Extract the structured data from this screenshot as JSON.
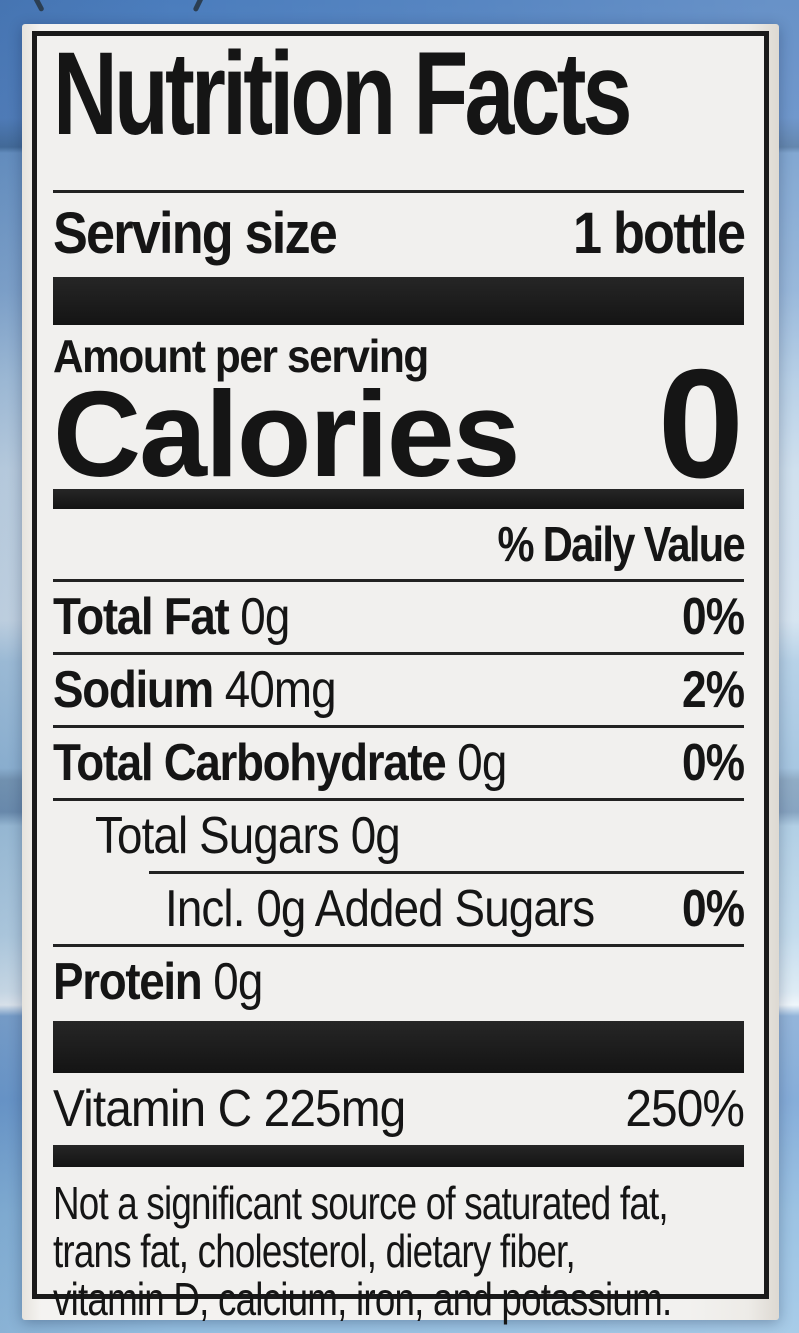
{
  "background": {
    "sky_top_color": "#4b7dbd",
    "sky_mid_color": "#c6daeb",
    "sky_bottom_color": "#8ab8de",
    "paper_color": "#f1f0ee",
    "ink_color": "#1a1a1a"
  },
  "label": {
    "title": "Nutrition Facts",
    "serving_size_label": "Serving size",
    "serving_size_value": "1 bottle",
    "amount_per_serving_label": "Amount per serving",
    "calories_label": "Calories",
    "calories_value": "0",
    "daily_value_header": "% Daily Value",
    "rows": [
      {
        "name": "Total Fat",
        "amount": "0g",
        "dv": "0%"
      },
      {
        "name": "Sodium",
        "amount": "40mg",
        "dv": "2%"
      },
      {
        "name": "Total Carbohydrate",
        "amount": "0g",
        "dv": "0%"
      },
      {
        "name": "Total Sugars",
        "amount": "0g",
        "dv": ""
      },
      {
        "name": "Incl. 0g Added Sugars",
        "amount": "",
        "dv": "0%"
      },
      {
        "name": "Protein",
        "amount": "0g",
        "dv": ""
      }
    ],
    "vitamins": [
      {
        "name": "Vitamin C",
        "amount": "225mg",
        "dv": "250%"
      }
    ],
    "footnote_lines": [
      "Not a significant source of saturated fat,",
      "trans fat, cholesterol, dietary fiber,",
      "vitamin D, calcium, iron, and potassium."
    ]
  }
}
